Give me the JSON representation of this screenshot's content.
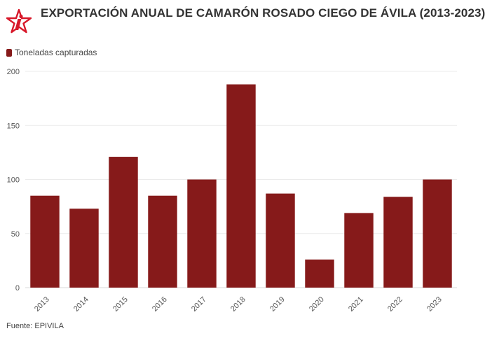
{
  "header": {
    "title": "EXPORTACIÓN ANUAL DE CAMARÓN ROSADO CIEGO DE ÁVILA (2013-2023)",
    "logo_icon": "red-star-i-logo"
  },
  "footer": {
    "source": "Fuente: EPIVILA"
  },
  "colors": {
    "bar": "#861a1a",
    "title": "#333333",
    "grid": "#ebebeb",
    "logo": "#d8182a"
  },
  "chart_data": {
    "type": "bar",
    "title": "EXPORTACIÓN ANUAL DE CAMARÓN ROSADO CIEGO DE ÁVILA (2013-2023)",
    "xlabel": "",
    "ylabel": "",
    "categories": [
      "2013",
      "2014",
      "2015",
      "2016",
      "2017",
      "2018",
      "2019",
      "2020",
      "2021",
      "2022",
      "2023"
    ],
    "series": [
      {
        "name": "Toneladas capturadas",
        "values": [
          85,
          73,
          121,
          85,
          100,
          188,
          87,
          26,
          69,
          84,
          100
        ]
      }
    ],
    "ylim": [
      0,
      200
    ],
    "yticks": [
      0,
      50,
      100,
      150,
      200
    ],
    "grid": true,
    "legend_position": "top-left"
  }
}
